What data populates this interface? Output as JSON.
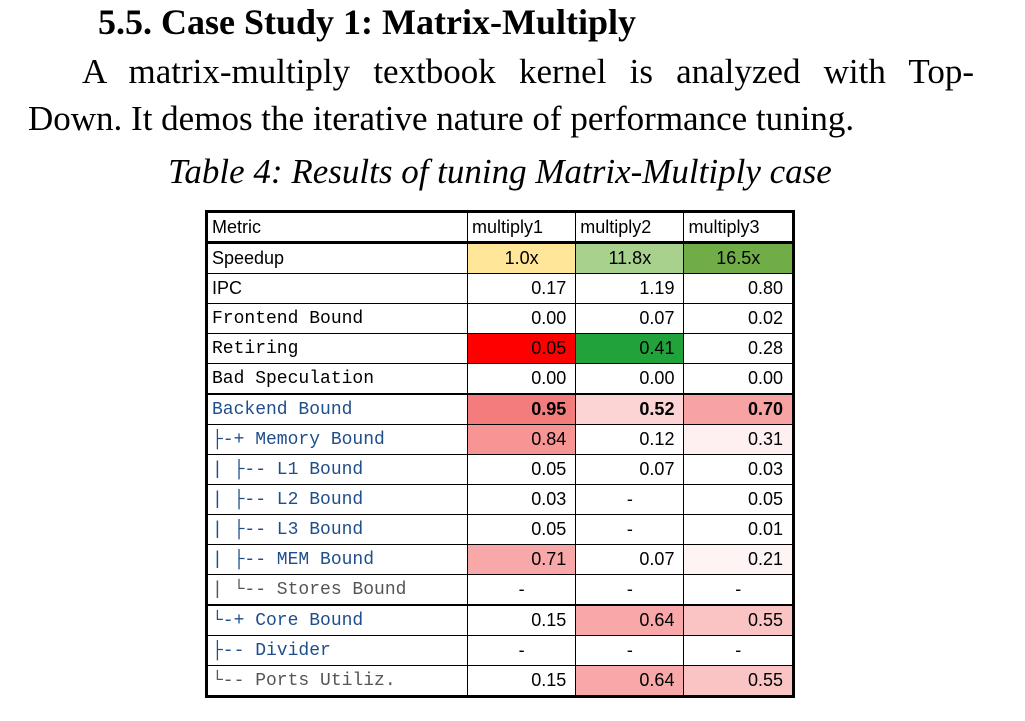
{
  "section": {
    "heading": "5.5.  Case Study 1: Matrix-Multiply",
    "para_line1": "A matrix-multiply textbook kernel is analyzed with Top-",
    "para_line2": "Down. It demos the iterative nature of performance tuning.",
    "caption": "Table 4: Results of tuning Matrix-Multiply case"
  },
  "table": {
    "headers": [
      "Metric",
      "multiply1",
      "multiply2",
      "multiply3"
    ],
    "rows": [
      {
        "metric": "Speedup",
        "values": [
          "1.0x",
          "11.8x",
          "16.5x"
        ],
        "colors": [
          "#ffe699",
          "#a9d18e",
          "#70ad47"
        ]
      },
      {
        "metric": "IPC",
        "values": [
          "0.17",
          "1.19",
          "0.80"
        ],
        "colors": [
          "",
          "",
          ""
        ]
      },
      {
        "metric": "Frontend Bound",
        "values": [
          "0.00",
          "0.07",
          "0.02"
        ],
        "colors": [
          "",
          "",
          ""
        ]
      },
      {
        "metric": "Retiring",
        "values": [
          "0.05",
          "0.41",
          "0.28"
        ],
        "colors": [
          "#ff0000",
          "#22a23a",
          ""
        ]
      },
      {
        "metric": "Bad Speculation",
        "values": [
          "0.00",
          "0.00",
          "0.00"
        ],
        "colors": [
          "",
          "",
          ""
        ]
      },
      {
        "metric": "Backend Bound",
        "values": [
          "0.95",
          "0.52",
          "0.70"
        ],
        "colors": [
          "#f47c7c",
          "#fcd4d4",
          "#f8a3a3"
        ]
      },
      {
        "metric": "├-+ Memory Bound",
        "values": [
          "0.84",
          "0.12",
          "0.31"
        ],
        "colors": [
          "#f79494",
          "",
          "#fef0f0"
        ]
      },
      {
        "metric": "| ├-- L1 Bound",
        "values": [
          "0.05",
          "0.07",
          "0.03"
        ],
        "colors": [
          "",
          "",
          ""
        ]
      },
      {
        "metric": "| ├-- L2 Bound",
        "values": [
          "0.03",
          "-",
          "0.05"
        ],
        "colors": [
          "",
          "",
          ""
        ]
      },
      {
        "metric": "| ├-- L3 Bound",
        "values": [
          "0.05",
          "-",
          "0.01"
        ],
        "colors": [
          "",
          "",
          ""
        ]
      },
      {
        "metric": "| ├-- MEM Bound",
        "values": [
          "0.71",
          "0.07",
          "0.21"
        ],
        "colors": [
          "#f8a8a8",
          "",
          "#fef4f4"
        ]
      },
      {
        "metric": "| └-- Stores Bound",
        "values": [
          "-",
          "-",
          "-"
        ],
        "colors": [
          "",
          "",
          ""
        ]
      },
      {
        "metric": "└-+ Core Bound",
        "values": [
          "0.15",
          "0.64",
          "0.55"
        ],
        "colors": [
          "",
          "#f8a8a8",
          "#fbc4c4"
        ]
      },
      {
        "metric": "  ├-- Divider",
        "values": [
          "-",
          "-",
          "-"
        ],
        "colors": [
          "",
          "",
          ""
        ]
      },
      {
        "metric": "  └-- Ports Utiliz.",
        "values": [
          "0.15",
          "0.64",
          "0.55"
        ],
        "colors": [
          "",
          "#f8a8a8",
          "#fbc4c4"
        ]
      }
    ]
  }
}
